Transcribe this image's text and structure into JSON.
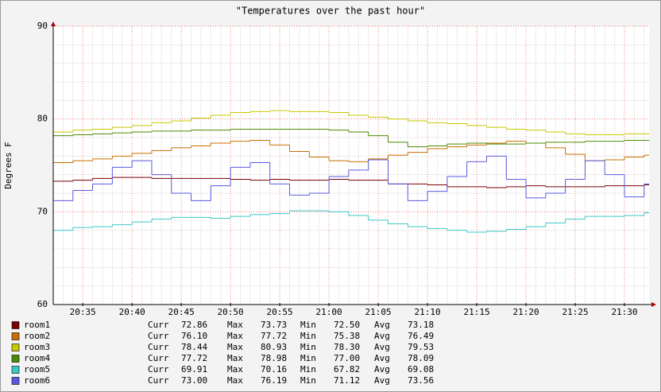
{
  "chart_data": {
    "type": "step",
    "title": "\"Temperatures over the past hour\"",
    "ylabel": "Degrees F",
    "x": [
      32,
      34,
      36,
      38,
      40,
      42,
      44,
      46,
      48,
      50,
      52,
      54,
      56,
      58,
      60,
      62,
      64,
      66,
      68,
      70,
      72,
      74,
      76,
      78,
      80,
      82,
      84,
      86,
      88,
      90,
      92
    ],
    "xlim": [
      32,
      92.5
    ],
    "xticks": [
      {
        "value": 35,
        "label": "20:35"
      },
      {
        "value": 40,
        "label": "20:40"
      },
      {
        "value": 45,
        "label": "20:45"
      },
      {
        "value": 50,
        "label": "20:50"
      },
      {
        "value": 55,
        "label": "20:55"
      },
      {
        "value": 60,
        "label": "21:00"
      },
      {
        "value": 65,
        "label": "21:05"
      },
      {
        "value": 70,
        "label": "21:10"
      },
      {
        "value": 75,
        "label": "21:15"
      },
      {
        "value": 80,
        "label": "21:20"
      },
      {
        "value": 85,
        "label": "21:25"
      },
      {
        "value": 90,
        "label": "21:30"
      }
    ],
    "xminor": [
      33,
      34,
      36,
      37,
      38,
      39,
      41,
      42,
      43,
      44,
      46,
      47,
      48,
      49,
      51,
      52,
      53,
      54,
      56,
      57,
      58,
      59,
      61,
      62,
      63,
      64,
      66,
      67,
      68,
      69,
      71,
      72,
      73,
      74,
      76,
      77,
      78,
      79,
      81,
      82,
      83,
      84,
      86,
      87,
      88,
      89,
      91,
      92
    ],
    "ylim": [
      60,
      90
    ],
    "yticks": [
      60,
      70,
      80,
      90
    ],
    "yminor": [
      62,
      64,
      66,
      68,
      72,
      74,
      76,
      78,
      82,
      84,
      86,
      88
    ],
    "grid": true,
    "stat_labels": [
      "Curr",
      "Max",
      "Min",
      "Avg"
    ],
    "series": [
      {
        "name": "room1",
        "color": "#7a0000",
        "values": [
          73.3,
          73.4,
          73.6,
          73.7,
          73.7,
          73.6,
          73.6,
          73.6,
          73.6,
          73.5,
          73.4,
          73.5,
          73.4,
          73.4,
          73.5,
          73.4,
          73.4,
          73.0,
          73.0,
          72.9,
          72.7,
          72.7,
          72.6,
          72.7,
          72.8,
          72.7,
          72.7,
          72.7,
          72.8,
          72.8,
          72.9
        ],
        "stats": [
          "72.86",
          "73.73",
          "72.50",
          "73.18"
        ]
      },
      {
        "name": "room2",
        "color": "#c87000",
        "values": [
          75.3,
          75.5,
          75.7,
          76.0,
          76.3,
          76.6,
          76.9,
          77.1,
          77.4,
          77.6,
          77.7,
          77.2,
          76.5,
          75.9,
          75.5,
          75.4,
          75.7,
          76.1,
          76.4,
          76.8,
          77.0,
          77.2,
          77.4,
          77.6,
          77.4,
          76.9,
          76.2,
          75.5,
          75.6,
          75.9,
          76.1
        ],
        "stats": [
          "76.10",
          "77.72",
          "75.38",
          "76.49"
        ]
      },
      {
        "name": "room3",
        "color": "#c8c800",
        "values": [
          78.6,
          78.8,
          78.9,
          79.1,
          79.3,
          79.6,
          79.8,
          80.1,
          80.4,
          80.7,
          80.8,
          80.9,
          80.8,
          80.8,
          80.7,
          80.4,
          80.2,
          80.0,
          79.8,
          79.6,
          79.5,
          79.3,
          79.1,
          78.9,
          78.8,
          78.6,
          78.4,
          78.3,
          78.3,
          78.4,
          78.4
        ],
        "stats": [
          "78.44",
          "80.93",
          "78.30",
          "79.53"
        ]
      },
      {
        "name": "room4",
        "color": "#4a8c00",
        "values": [
          78.2,
          78.3,
          78.4,
          78.5,
          78.6,
          78.7,
          78.7,
          78.8,
          78.8,
          78.9,
          78.9,
          78.9,
          78.9,
          78.9,
          78.8,
          78.6,
          78.2,
          77.5,
          77.0,
          77.1,
          77.3,
          77.4,
          77.3,
          77.3,
          77.4,
          77.5,
          77.5,
          77.6,
          77.6,
          77.7,
          77.7
        ],
        "stats": [
          "77.72",
          "78.98",
          "77.00",
          "78.09"
        ]
      },
      {
        "name": "room5",
        "color": "#3cc8c8",
        "values": [
          68.0,
          68.3,
          68.4,
          68.6,
          68.9,
          69.2,
          69.4,
          69.4,
          69.3,
          69.5,
          69.7,
          69.8,
          70.1,
          70.1,
          70.0,
          69.6,
          69.1,
          68.7,
          68.4,
          68.2,
          68.0,
          67.8,
          67.9,
          68.1,
          68.4,
          68.8,
          69.2,
          69.5,
          69.5,
          69.6,
          69.9
        ],
        "stats": [
          "69.91",
          "70.16",
          "67.82",
          "69.08"
        ]
      },
      {
        "name": "room6",
        "color": "#5a5ae0",
        "values": [
          71.2,
          72.3,
          73.0,
          74.8,
          75.5,
          74.0,
          72.0,
          71.2,
          72.8,
          74.8,
          75.3,
          73.0,
          71.8,
          72.0,
          73.8,
          74.5,
          75.6,
          73.0,
          71.2,
          72.2,
          73.8,
          75.4,
          76.0,
          73.5,
          71.5,
          72.0,
          73.5,
          75.5,
          74.0,
          71.6,
          73.0
        ],
        "stats": [
          "73.00",
          "76.19",
          "71.12",
          "73.56"
        ]
      }
    ]
  }
}
